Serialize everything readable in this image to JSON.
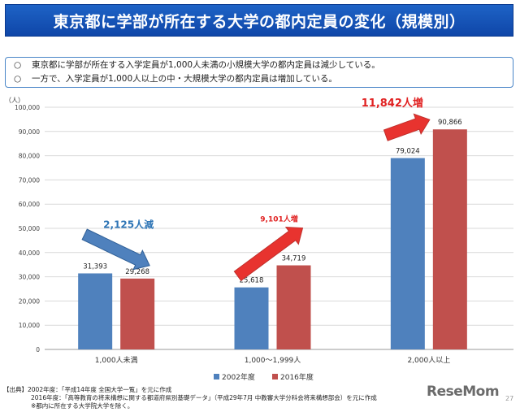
{
  "title": "東京都に学部が所在する大学の都内定員の変化（規模別）",
  "summary": [
    {
      "mark": "○",
      "text": "東京都に学部が所在する入学定員が1,000人未満の小規模大学の都内定員は減少している。"
    },
    {
      "mark": "○",
      "text": "一方で、入学定員が1,000人以上の中・大規模大学の都内定員は増加している。"
    }
  ],
  "chart_data": {
    "type": "bar",
    "unit": "（人）",
    "categories": [
      "1,000人未満",
      "1,000〜1,999人",
      "2,000人以上"
    ],
    "series": [
      {
        "name": "2002年度",
        "color": "#4f81bd",
        "values": [
          31393,
          25618,
          79024
        ],
        "labels": [
          "31,393",
          "25,618",
          "79,024"
        ]
      },
      {
        "name": "2016年度",
        "color": "#c0504d",
        "values": [
          29268,
          34719,
          90866
        ],
        "labels": [
          "29,268",
          "34,719",
          "90,866"
        ]
      }
    ],
    "ylim": [
      0,
      100000
    ],
    "yticks": [
      "0",
      "10,000",
      "20,000",
      "30,000",
      "40,000",
      "50,000",
      "60,000",
      "70,000",
      "80,000",
      "90,000",
      "100,000"
    ],
    "grid": true,
    "legend_position": "bottom-right",
    "annotations": [
      {
        "text": "2,125人減",
        "direction": "down",
        "arrow_color": "#4f81bd",
        "text_color": "#2e75b6"
      },
      {
        "text": "9,101人増",
        "direction": "up",
        "arrow_color": "#e8332f",
        "text_color": "#e02020"
      },
      {
        "text": "11,842人増",
        "direction": "up",
        "arrow_color": "#e8332f",
        "text_color": "#e02020"
      }
    ]
  },
  "source": {
    "line1": "【出典】2002年度：「平成14年度 全国大学一覧」を元に作成",
    "line2": "2016年度：「高等教育の将来構想に関する都道府県別基礎データ」（平成29年7月 中教審大学分科会将来構想部会）を元に作成",
    "line3": "※都内に所在する大学院大学を除く。"
  },
  "logo": "ReseMom",
  "page_number": "27"
}
